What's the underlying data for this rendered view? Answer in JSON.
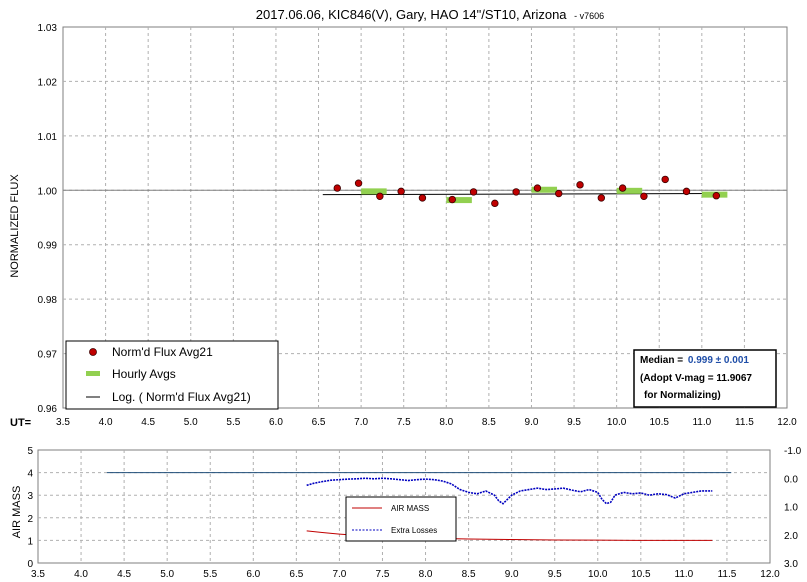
{
  "title": "2017.06.06, KIC846(V), Gary, HAO 14\"/ST10, Arizona",
  "title_suffix": "- v7606",
  "top_chart": {
    "ylabel": "NORMALIZED FLUX",
    "ut_label": "UT=",
    "xlim": [
      3.5,
      12.0
    ],
    "ylim": [
      0.96,
      1.03
    ],
    "y_ticks": [
      "1.03",
      "1.02",
      "1.01",
      "1.00",
      "0.99",
      "0.98",
      "0.97",
      "0.96"
    ],
    "x_ticks": [
      "3.5",
      "4.0",
      "4.5",
      "5.0",
      "5.5",
      "6.0",
      "6.5",
      "7.0",
      "7.5",
      "8.0",
      "8.5",
      "9.0",
      "9.5",
      "10.0",
      "10.5",
      "11.0",
      "11.5",
      "12.0"
    ],
    "legend": [
      "Norm'd Flux Avg21",
      "Hourly Avgs",
      "Log. ( Norm'd Flux Avg21)"
    ],
    "info_box": {
      "median_label": "Median =",
      "median_value": "0.999 ± 0.001",
      "line2": "(Adopt V-mag = 11.9067",
      "line3": "for Normalizing)"
    }
  },
  "bottom_chart": {
    "ylabel": "AIR MASS",
    "xlim": [
      3.5,
      12.0
    ],
    "ylim_left": [
      0,
      5
    ],
    "ylim_right": [
      -1.0,
      3.0
    ],
    "y_ticks_left": [
      "5",
      "4",
      "3",
      "2",
      "1",
      "0"
    ],
    "y_ticks_right": [
      "-1.0",
      "0.0",
      "1.0",
      "2.0",
      "3.0"
    ],
    "x_ticks": [
      "3.5",
      "4.0",
      "4.5",
      "5.0",
      "5.5",
      "6.0",
      "6.5",
      "7.0",
      "7.5",
      "8.0",
      "8.5",
      "9.0",
      "9.5",
      "10.0",
      "10.5",
      "11.0",
      "11.5",
      "12.0"
    ],
    "legend": [
      "AIR MASS",
      "Extra Losses"
    ]
  },
  "colors": {
    "flux_points": "#c00000",
    "hourly": "#92d050",
    "airmass": "#c00000",
    "extra_losses": "#0000c0",
    "horizontal_line": "#1f4e79",
    "median_value": "#1f4ea8"
  },
  "chart_data": [
    {
      "type": "scatter",
      "title": "2017.06.06, KIC846(V), Gary, HAO 14\"/ST10, Arizona - v7606",
      "xlabel": "UT=",
      "ylabel": "NORMALIZED FLUX",
      "xlim": [
        3.5,
        12.0
      ],
      "ylim": [
        0.96,
        1.03
      ],
      "grid": true,
      "legend_position": "bottom-left",
      "reference_line": 1.0,
      "series": [
        {
          "name": "Norm'd Flux Avg21",
          "x": [
            6.72,
            6.97,
            7.22,
            7.47,
            7.72,
            8.07,
            8.32,
            8.57,
            8.82,
            9.07,
            9.32,
            9.57,
            9.82,
            10.07,
            10.32,
            10.57,
            10.82,
            11.17
          ],
          "y": [
            1.0004,
            1.0013,
            0.9989,
            0.9998,
            0.9986,
            0.9983,
            0.9997,
            0.9976,
            0.9997,
            1.0004,
            0.9994,
            1.001,
            0.9986,
            1.0004,
            0.9989,
            1.002,
            0.9998,
            0.999
          ]
        },
        {
          "name": "Hourly Avgs",
          "x": [
            7.15,
            8.15,
            9.15,
            10.15,
            11.15
          ],
          "y": [
            0.9998,
            0.9982,
            1.0001,
            0.9999,
            0.9992
          ],
          "half_width": 0.15
        },
        {
          "name": "Log. ( Norm'd Flux Avg21)",
          "x": [
            6.55,
            11.25
          ],
          "y": [
            0.9992,
            0.9994
          ]
        }
      ]
    },
    {
      "type": "line",
      "ylabel": "AIR MASS",
      "xlim": [
        3.5,
        12.0
      ],
      "ylim": [
        0,
        5
      ],
      "y2lim": [
        -1.0,
        3.0
      ],
      "grid": true,
      "legend_position": "center",
      "reference_line": 4.0,
      "reference_line_x": [
        4.3,
        11.55
      ],
      "series": [
        {
          "name": "AIR MASS",
          "axis": "left",
          "x": [
            6.62,
            6.8,
            7.0,
            7.3,
            7.6,
            8.0,
            8.5,
            9.0,
            9.5,
            10.0,
            10.5,
            11.0,
            11.33
          ],
          "y": [
            1.42,
            1.35,
            1.28,
            1.2,
            1.15,
            1.1,
            1.06,
            1.04,
            1.02,
            1.01,
            1.0,
            1.0,
            1.0
          ]
        },
        {
          "name": "Extra Losses",
          "axis": "right",
          "x": [
            6.62,
            6.7,
            6.8,
            6.9,
            7.0,
            7.1,
            7.2,
            7.3,
            7.4,
            7.5,
            7.6,
            7.7,
            7.8,
            7.9,
            8.0,
            8.1,
            8.2,
            8.3,
            8.4,
            8.5,
            8.6,
            8.7,
            8.8,
            8.85,
            8.9,
            8.95,
            9.0,
            9.1,
            9.2,
            9.3,
            9.4,
            9.5,
            9.6,
            9.7,
            9.8,
            9.9,
            10.0,
            10.05,
            10.1,
            10.15,
            10.2,
            10.25,
            10.3,
            10.4,
            10.5,
            10.6,
            10.7,
            10.8,
            10.9,
            11.0,
            11.1,
            11.2,
            11.33
          ],
          "y": [
            0.25,
            0.18,
            0.12,
            0.07,
            0.05,
            0.03,
            0.02,
            0.0,
            0.02,
            0.0,
            0.02,
            0.05,
            0.08,
            0.05,
            0.03,
            0.05,
            0.1,
            0.2,
            0.4,
            0.5,
            0.55,
            0.45,
            0.6,
            0.8,
            0.9,
            0.75,
            0.6,
            0.45,
            0.4,
            0.35,
            0.4,
            0.38,
            0.35,
            0.42,
            0.48,
            0.4,
            0.5,
            0.75,
            0.9,
            0.85,
            0.6,
            0.55,
            0.5,
            0.55,
            0.52,
            0.6,
            0.55,
            0.58,
            0.7,
            0.55,
            0.5,
            0.45,
            0.45
          ]
        }
      ]
    }
  ]
}
